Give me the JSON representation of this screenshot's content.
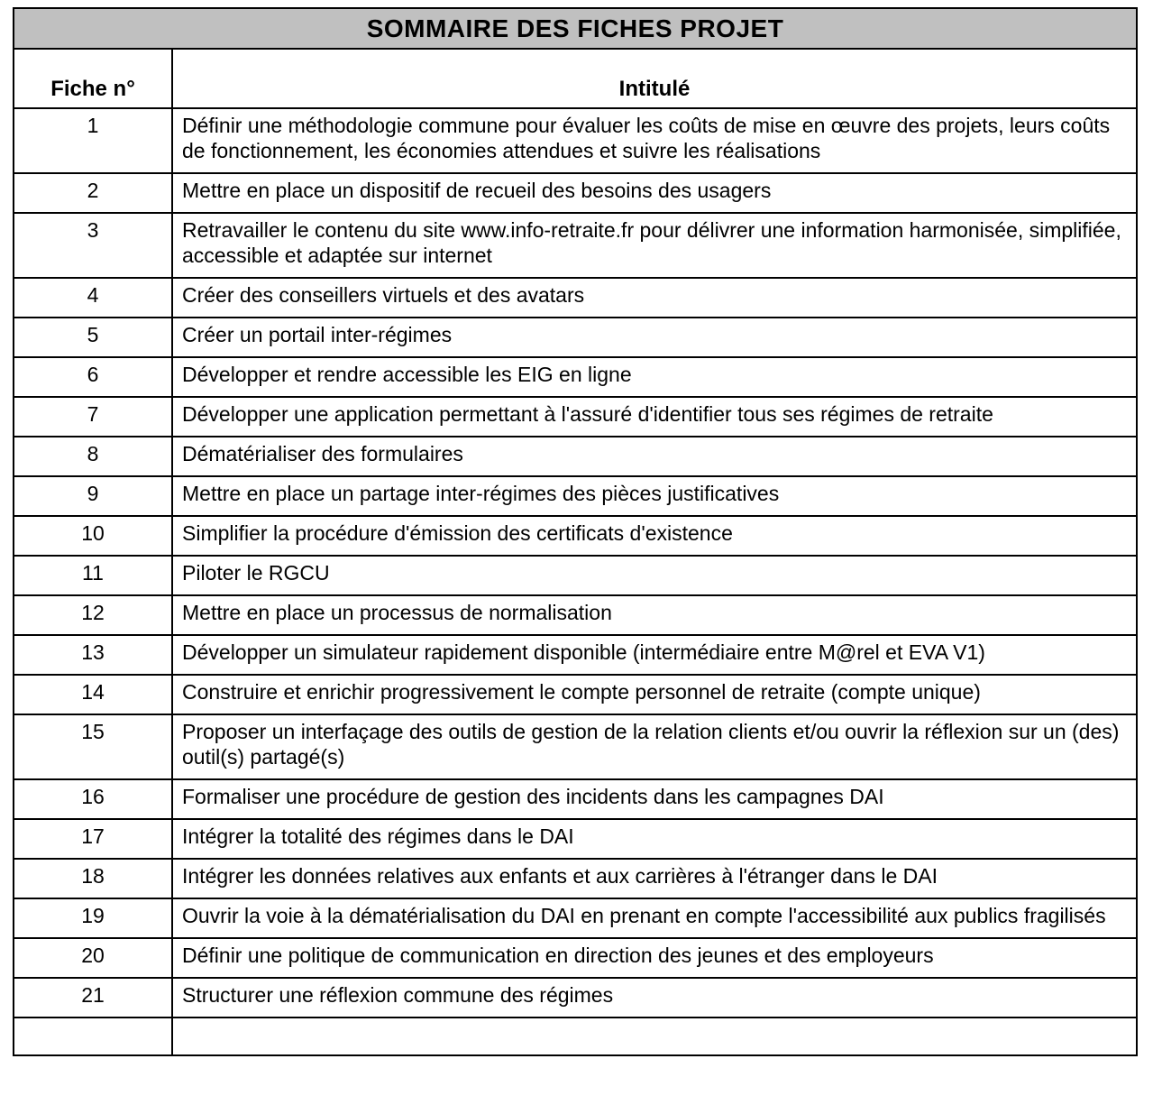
{
  "title": "SOMMAIRE DES FICHES PROJET",
  "columns": {
    "fiche": "Fiche n°",
    "intitule": "Intitulé"
  },
  "colors": {
    "title_band_bg": "#c0c0c0",
    "border": "#000000",
    "text": "#000000",
    "background": "#ffffff"
  },
  "rows": [
    {
      "num": "1",
      "label": "Définir une méthodologie commune pour évaluer les coûts de mise en œuvre des projets, leurs coûts de fonctionnement, les économies attendues et suivre les réalisations"
    },
    {
      "num": "2",
      "label": "Mettre en place un dispositif de recueil des besoins des usagers"
    },
    {
      "num": "3",
      "label": "Retravailler le contenu du site www.info-retraite.fr pour délivrer une information harmonisée, simplifiée, accessible et adaptée sur internet"
    },
    {
      "num": "4",
      "label": "Créer des conseillers virtuels et des avatars"
    },
    {
      "num": "5",
      "label": "Créer un portail inter-régimes"
    },
    {
      "num": "6",
      "label": "Développer et rendre accessible les EIG en ligne"
    },
    {
      "num": "7",
      "label": "Développer une application permettant à l'assuré d'identifier tous ses régimes de retraite"
    },
    {
      "num": "8",
      "label": "Dématérialiser des formulaires"
    },
    {
      "num": "9",
      "label": "Mettre en place un partage inter-régimes des pièces justificatives"
    },
    {
      "num": "10",
      "label": "Simplifier la procédure d'émission des certificats d'existence"
    },
    {
      "num": "11",
      "label": "Piloter le RGCU"
    },
    {
      "num": "12",
      "label": "Mettre en place un processus de normalisation"
    },
    {
      "num": "13",
      "label": "Développer un simulateur rapidement disponible (intermédiaire entre M@rel et EVA V1)"
    },
    {
      "num": "14",
      "label": "Construire et enrichir progressivement le compte personnel de retraite (compte unique)"
    },
    {
      "num": "15",
      "label": "Proposer un interfaçage des outils de gestion de la relation clients et/ou ouvrir la réflexion sur un (des) outil(s) partagé(s)"
    },
    {
      "num": "16",
      "label": "Formaliser une procédure de gestion des incidents dans les campagnes DAI"
    },
    {
      "num": "17",
      "label": "Intégrer la totalité des régimes dans le DAI"
    },
    {
      "num": "18",
      "label": "Intégrer les données relatives aux enfants et aux carrières à l'étranger dans le DAI"
    },
    {
      "num": "19",
      "label": "Ouvrir la voie à la dématérialisation du DAI en prenant en compte l'accessibilité aux publics fragilisés"
    },
    {
      "num": "20",
      "label": "Définir une politique de communication en direction des jeunes et des employeurs"
    },
    {
      "num": "21",
      "label": "Structurer une réflexion commune des régimes"
    }
  ]
}
